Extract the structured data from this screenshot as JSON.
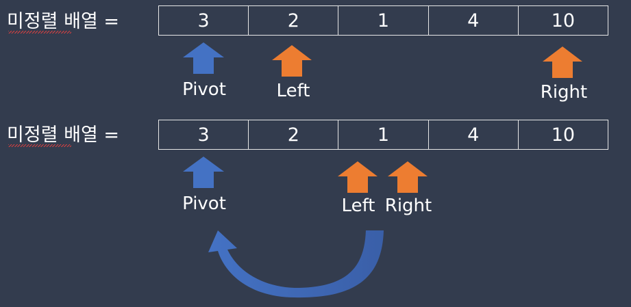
{
  "rows": [
    {
      "label": "미정렬 배열 =",
      "values": [
        "3",
        "2",
        "1",
        "4",
        "10"
      ],
      "pointers": [
        {
          "name": "pivot",
          "label": "Pivot",
          "color": "#4472c4"
        },
        {
          "name": "left",
          "label": "Left",
          "color": "#ed7d31"
        },
        {
          "name": "right",
          "label": "Right",
          "color": "#ed7d31"
        }
      ]
    },
    {
      "label": "미정렬 배열 =",
      "values": [
        "3",
        "2",
        "1",
        "4",
        "10"
      ],
      "pointers": [
        {
          "name": "pivot",
          "label": "Pivot",
          "color": "#4472c4"
        },
        {
          "name": "left",
          "label": "Left",
          "color": "#ed7d31"
        },
        {
          "name": "right",
          "label": "Right",
          "color": "#ed7d31"
        }
      ]
    }
  ],
  "colors": {
    "background": "#333c4e",
    "pivot": "#4472c4",
    "pointer": "#ed7d31",
    "swap_arrow": "#4472c4"
  }
}
